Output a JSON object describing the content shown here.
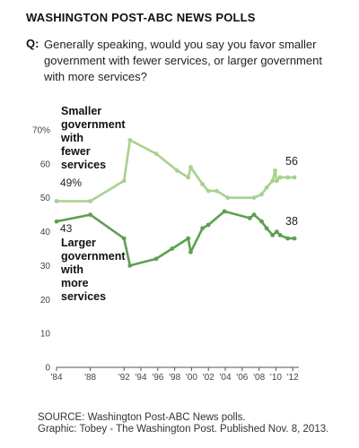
{
  "header": {
    "title": "WASHINGTON POST-ABC NEWS POLLS",
    "q_label": "Q:",
    "question": "Generally speaking, would you say you favor smaller government with fewer services, or larger government with more services?"
  },
  "chart_data": {
    "type": "line",
    "title": "",
    "xlabel": "",
    "ylabel": "",
    "ylim": [
      0,
      70
    ],
    "y_ticks": [
      0,
      10,
      20,
      30,
      40,
      50,
      60,
      70
    ],
    "y_tick_labels": [
      "0",
      "10",
      "20",
      "30",
      "40",
      "50",
      "60",
      "70%"
    ],
    "x_ticks": [
      1984,
      1988,
      1992,
      1994,
      1996,
      1998,
      2000,
      2002,
      2004,
      2006,
      2008,
      2010,
      2012
    ],
    "x_tick_labels": [
      "'84",
      "'88",
      "'92",
      "'94",
      "'96",
      "'98",
      "'00",
      "'02",
      "'04",
      "'06",
      "'08",
      "'10",
      "'12"
    ],
    "grid": false,
    "series": [
      {
        "name": "Smaller government with fewer services",
        "color": "#a9d18e",
        "points": [
          [
            1984.0,
            49
          ],
          [
            1988.0,
            49
          ],
          [
            1992.0,
            55
          ],
          [
            1992.7,
            67
          ],
          [
            1995.8,
            63
          ],
          [
            1998.3,
            58
          ],
          [
            1999.6,
            56
          ],
          [
            1999.9,
            59
          ],
          [
            2001.3,
            54
          ],
          [
            2002.0,
            52
          ],
          [
            2003.0,
            52
          ],
          [
            2004.3,
            50
          ],
          [
            2007.4,
            50
          ],
          [
            2008.3,
            51
          ],
          [
            2008.9,
            53
          ],
          [
            2009.6,
            55
          ],
          [
            2009.9,
            58
          ],
          [
            2010.1,
            55
          ],
          [
            2010.5,
            56
          ],
          [
            2011.4,
            56
          ],
          [
            2012.2,
            56
          ]
        ]
      },
      {
        "name": "Larger government with more services",
        "color": "#5da050",
        "points": [
          [
            1984.0,
            43
          ],
          [
            1988.0,
            45
          ],
          [
            1992.0,
            38
          ],
          [
            1992.7,
            30
          ],
          [
            1995.8,
            32
          ],
          [
            1997.7,
            35
          ],
          [
            1999.6,
            38
          ],
          [
            1999.9,
            34
          ],
          [
            2001.3,
            41
          ],
          [
            2002.0,
            42
          ],
          [
            2003.9,
            46
          ],
          [
            2006.9,
            44
          ],
          [
            2007.4,
            45
          ],
          [
            2008.3,
            43
          ],
          [
            2008.9,
            41
          ],
          [
            2009.6,
            39
          ],
          [
            2010.1,
            40
          ],
          [
            2010.5,
            39
          ],
          [
            2011.4,
            38
          ],
          [
            2012.2,
            38
          ]
        ]
      }
    ],
    "annotations": {
      "smaller_label": [
        "Smaller",
        "government",
        "with",
        "fewer",
        "services"
      ],
      "smaller_start": "49%",
      "smaller_end": "56",
      "larger_label": [
        "Larger",
        "government",
        "with",
        "more",
        "services"
      ],
      "larger_start": "43",
      "larger_end": "38"
    }
  },
  "footer": {
    "source": "SOURCE: Washington Post-ABC News polls.",
    "credit": "Graphic: Tobey - The Washington Post. Published Nov. 8, 2013."
  }
}
